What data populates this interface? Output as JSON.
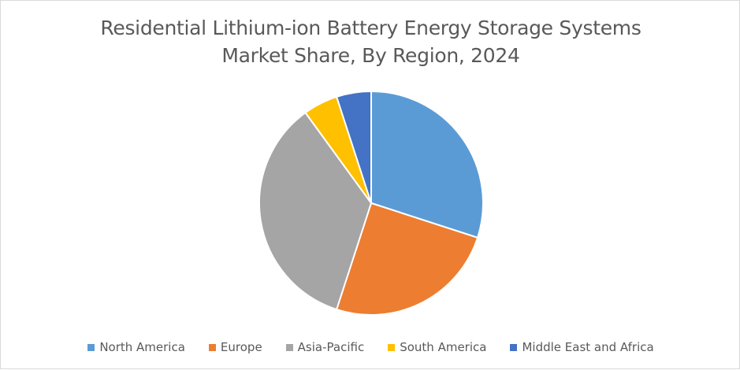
{
  "chart_data": {
    "type": "pie",
    "title_lines": [
      "Residential Lithium-ion Battery Energy Storage Systems",
      "Market Share, By Region, 2024"
    ],
    "categories": [
      "North America",
      "Europe",
      "Asia-Pacific",
      "South America",
      "Middle East and Africa"
    ],
    "values": [
      30,
      25,
      35,
      5,
      5
    ],
    "colors": [
      "#5B9BD5",
      "#ED7D31",
      "#A5A5A5",
      "#FFC000",
      "#4472C4"
    ],
    "start_angle_deg": 0,
    "direction": "clockwise",
    "legend_position": "bottom",
    "data_labels": false
  }
}
